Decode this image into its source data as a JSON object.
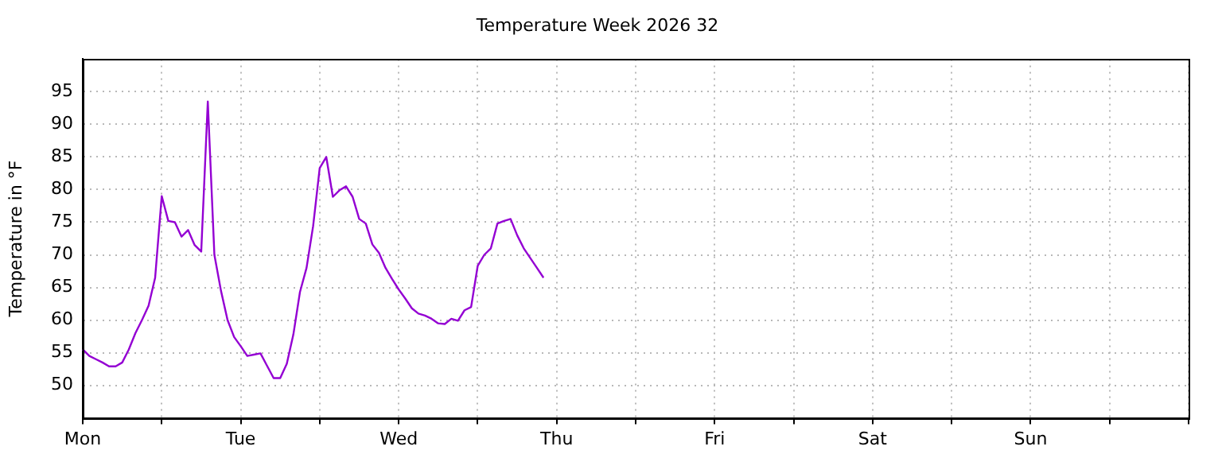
{
  "chart_data": {
    "type": "line",
    "title": "Temperature Week 2026 32",
    "ylabel": "Temperature in °F",
    "categories": [
      "Mon",
      null,
      null,
      null,
      null,
      null,
      null,
      null,
      null,
      null,
      null,
      null,
      null,
      null,
      null,
      null,
      null,
      null,
      null,
      null,
      null,
      null,
      null,
      null,
      "Tue",
      null,
      null,
      null,
      null,
      null,
      null,
      null,
      null,
      null,
      null,
      null,
      null,
      null,
      null,
      null,
      null,
      null,
      null,
      null,
      null,
      null,
      null,
      null,
      "Wed",
      null,
      null,
      null,
      null,
      null,
      null,
      null,
      null,
      null,
      null,
      null,
      null,
      null,
      null,
      null,
      null,
      null,
      null,
      null,
      null,
      null,
      null,
      null,
      "Thu",
      null,
      null,
      null,
      null,
      null,
      null,
      null,
      null,
      null,
      null,
      null,
      null,
      null,
      null,
      null,
      null,
      null,
      null,
      null,
      null,
      null,
      null,
      null,
      "Fri",
      null,
      null,
      null,
      null,
      null,
      null,
      null,
      null,
      null,
      null,
      null,
      null,
      null,
      null,
      null,
      null,
      null,
      null,
      null,
      null,
      null,
      null,
      null,
      "Sat",
      null,
      null,
      null,
      null,
      null,
      null,
      null,
      null,
      null,
      null,
      null,
      null,
      null,
      null,
      null,
      null,
      null,
      null,
      null,
      null,
      null,
      null,
      null,
      "Sun",
      null,
      null,
      null,
      null,
      null,
      null,
      null,
      null,
      null,
      null,
      null,
      null,
      null,
      null,
      null,
      null,
      null,
      null,
      null,
      null,
      null,
      null,
      null,
      null
    ],
    "ylim": [
      45,
      100
    ],
    "yticks": [
      50,
      55,
      60,
      65,
      70,
      75,
      80,
      85,
      90,
      95
    ],
    "grid": true,
    "legend": false,
    "marker": "none",
    "line_style": "solid",
    "series": [
      {
        "color": "#9400d3",
        "values": [
          55.5,
          54.5,
          54.0,
          53.5,
          52.9,
          52.9,
          53.5,
          55.5,
          58.0,
          60.0,
          62.2,
          66.5,
          79.0,
          75.2,
          75.0,
          72.8,
          73.8,
          71.5,
          70.5,
          93.5,
          70.0,
          64.5,
          60.0,
          57.4,
          56.0,
          54.5,
          54.7,
          54.9,
          53.0,
          51.1,
          51.1,
          53.3,
          57.8,
          64.3,
          68.0,
          74.4,
          83.3,
          85.0,
          78.9,
          79.9,
          80.5,
          78.9,
          75.5,
          74.8,
          71.6,
          70.3,
          68.0,
          66.3,
          64.7,
          63.3,
          61.8,
          61.0,
          60.7,
          60.2,
          59.5,
          59.4,
          60.2,
          59.9,
          61.5,
          62.0,
          68.3,
          70.0,
          71.0,
          74.8,
          75.2,
          75.5,
          73.0,
          71.0,
          69.5,
          68.0,
          66.5,
          null,
          null,
          null,
          null,
          null,
          null,
          null,
          null,
          null,
          null,
          null,
          null,
          null,
          null,
          null,
          null,
          null,
          null,
          null,
          null,
          null,
          null,
          null,
          null,
          null,
          null,
          null,
          null,
          null,
          null,
          null,
          null,
          null,
          null,
          null,
          null,
          null,
          null,
          null,
          null,
          null,
          null,
          null,
          null,
          null,
          null,
          null,
          null,
          null,
          null,
          null,
          null,
          null,
          null,
          null,
          null,
          null,
          null,
          null,
          null,
          null,
          null,
          null,
          null,
          null,
          null,
          null,
          null,
          null,
          null,
          null,
          null,
          null,
          null,
          null,
          null,
          null,
          null,
          null,
          null,
          null,
          null,
          null,
          null,
          null,
          null,
          null,
          null,
          null,
          null,
          null,
          null,
          null,
          null,
          null,
          null,
          null,
          null
        ]
      }
    ]
  }
}
